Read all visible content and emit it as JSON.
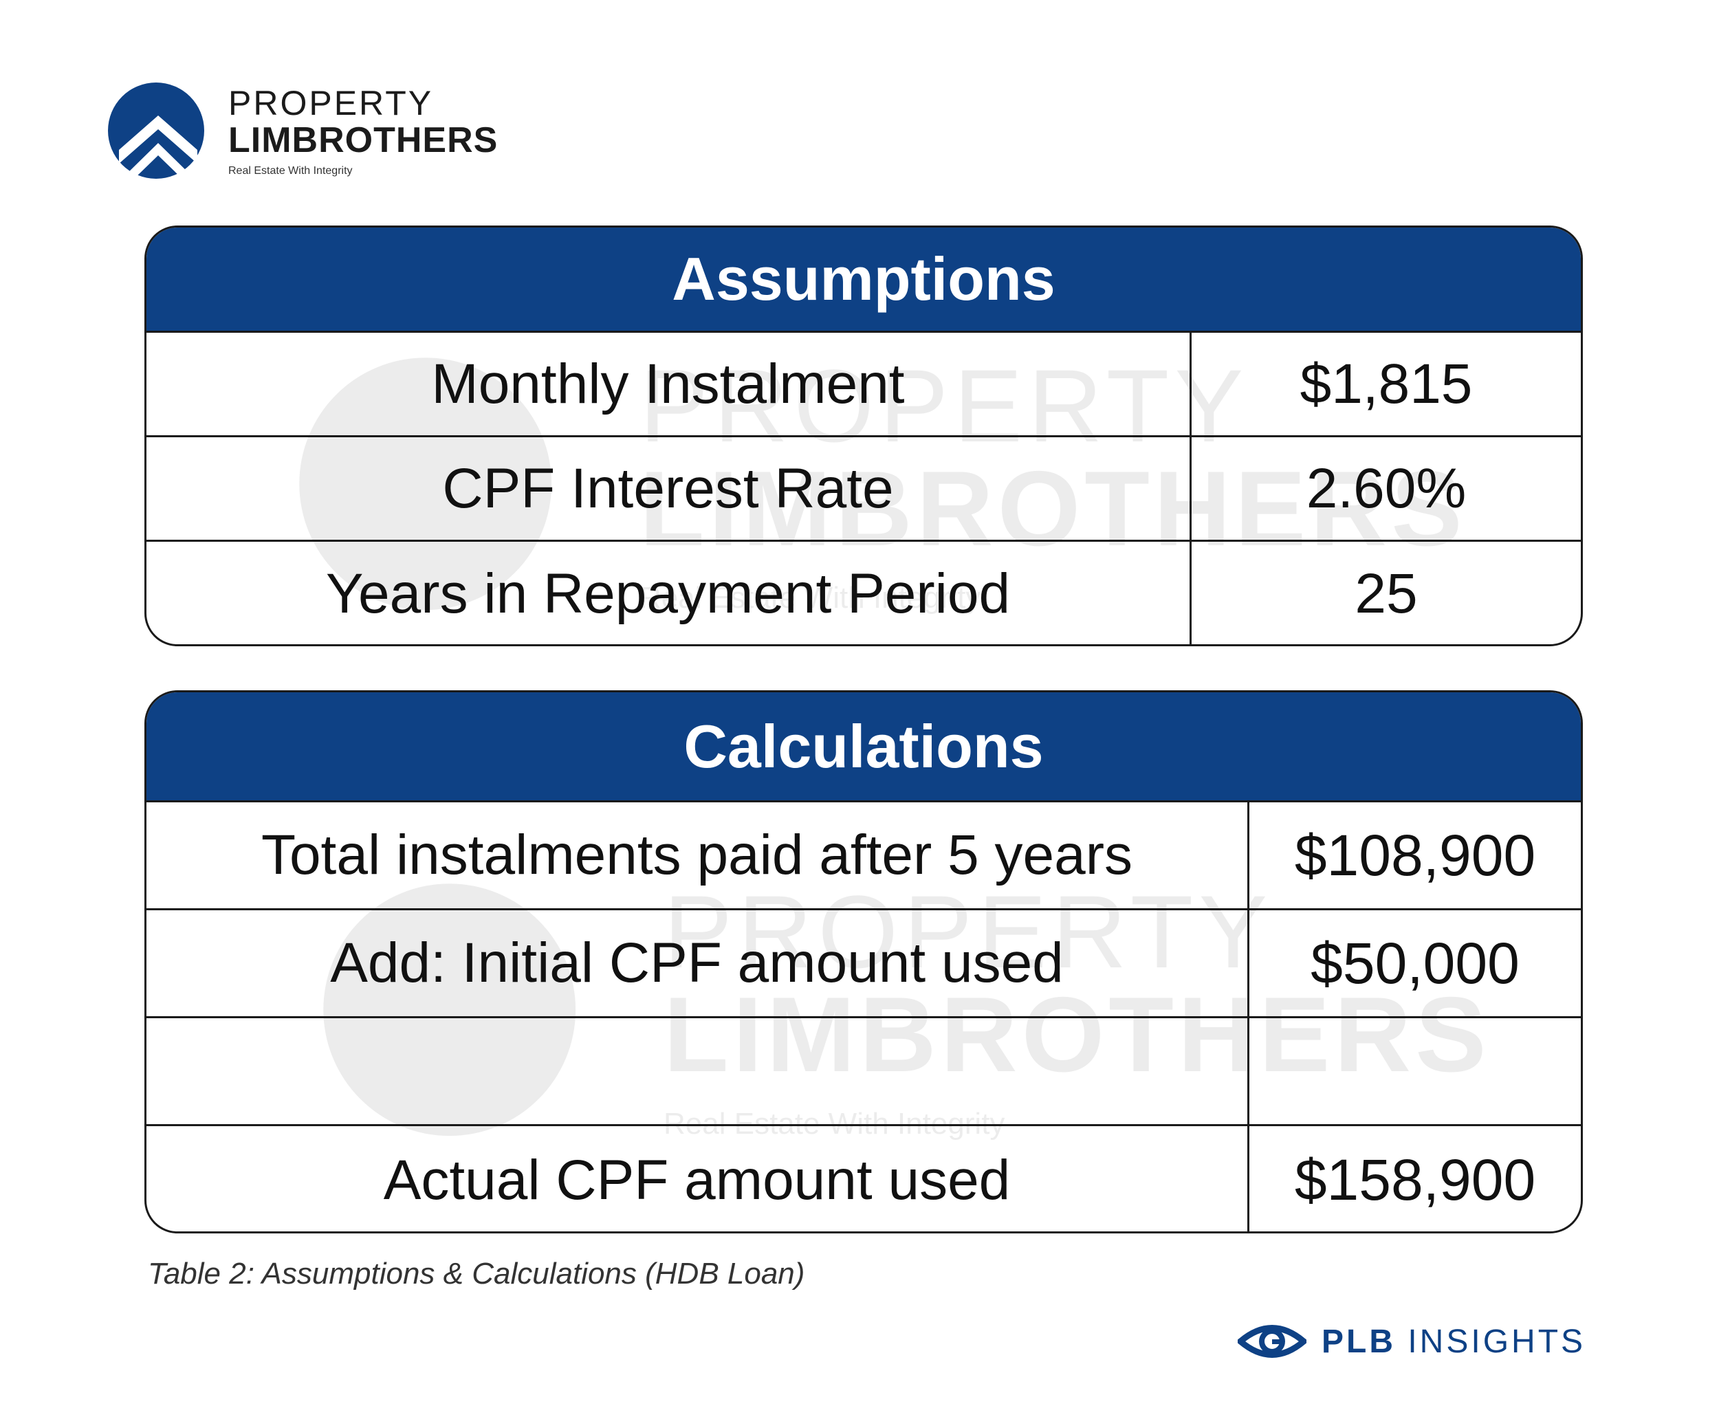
{
  "brand": {
    "line1": "PROPERTY",
    "line2": "LIMBROTHERS",
    "tagline": "Real Estate With Integrity",
    "color": "#0e4185"
  },
  "watermark": {
    "line1": "PROPERTY",
    "line2": "LIMBROTHERS",
    "line3": "Real Estate With Integrity"
  },
  "assumptions": {
    "title": "Assumptions",
    "rows": [
      {
        "label": "Monthly Instalment",
        "value": "$1,815"
      },
      {
        "label": "CPF Interest Rate",
        "value": "2.60%"
      },
      {
        "label": "Years in Repayment Period",
        "value": "25"
      }
    ]
  },
  "calculations": {
    "title": "Calculations",
    "rows": [
      {
        "label": "Total instalments paid after 5 years",
        "value": "$108,900"
      },
      {
        "label": "Add: Initial CPF amount used",
        "value": "$50,000"
      },
      {
        "label": "",
        "value": ""
      },
      {
        "label": "Actual CPF amount used",
        "value": "$158,900"
      }
    ]
  },
  "caption": "Table 2: Assumptions & Calculations (HDB Loan)",
  "footer": {
    "brand_bold": "PLB",
    "brand_rest": " INSIGHTS",
    "icon": "eye-icon"
  },
  "colors": {
    "header_bg": "#0e4185",
    "border": "#1a1a1a",
    "accent": "#0e4185"
  }
}
